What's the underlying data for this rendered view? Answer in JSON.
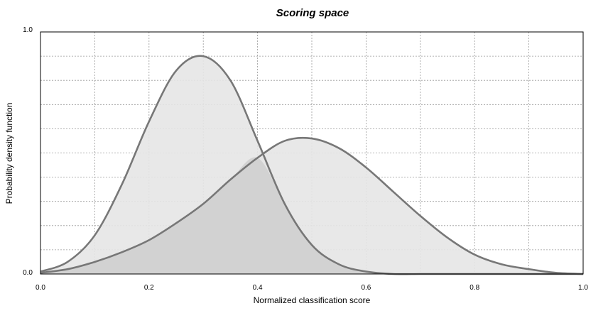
{
  "chart_data": {
    "type": "area",
    "title": "Scoring space",
    "xlabel": "Normalized classification score",
    "ylabel": "Probability density function",
    "xlim": [
      0.0,
      1.0
    ],
    "ylim": [
      0.0,
      1.0
    ],
    "x_ticks": [
      0.0,
      0.2,
      0.4,
      0.6,
      0.8,
      1.0
    ],
    "x_tick_labels": [
      "0.0",
      "0.2",
      "0.4",
      "0.6",
      "0.8",
      "1.0"
    ],
    "y_tick_labels": [
      "0.0",
      "1.0"
    ],
    "grid": true,
    "x": [
      0.0,
      0.05,
      0.1,
      0.15,
      0.2,
      0.25,
      0.3,
      0.35,
      0.4,
      0.45,
      0.5,
      0.55,
      0.6,
      0.65,
      0.7,
      0.75,
      0.8,
      0.85,
      0.9,
      0.95,
      1.0
    ],
    "series": [
      {
        "values": [
          0.01,
          0.05,
          0.16,
          0.37,
          0.63,
          0.84,
          0.9,
          0.8,
          0.55,
          0.29,
          0.12,
          0.04,
          0.01,
          0.0,
          0.0,
          0.0,
          0.0,
          0.0,
          0.0,
          0.0,
          0.0
        ]
      },
      {
        "values": [
          0.005,
          0.02,
          0.05,
          0.09,
          0.14,
          0.21,
          0.29,
          0.39,
          0.48,
          0.55,
          0.56,
          0.52,
          0.44,
          0.34,
          0.24,
          0.15,
          0.08,
          0.04,
          0.02,
          0.005,
          0.0
        ]
      }
    ],
    "colors": {
      "line": "#777777",
      "fill": "#e6e6e6",
      "overlap": "#d2d2d2",
      "grid": "#999999",
      "axis": "#000000"
    }
  }
}
